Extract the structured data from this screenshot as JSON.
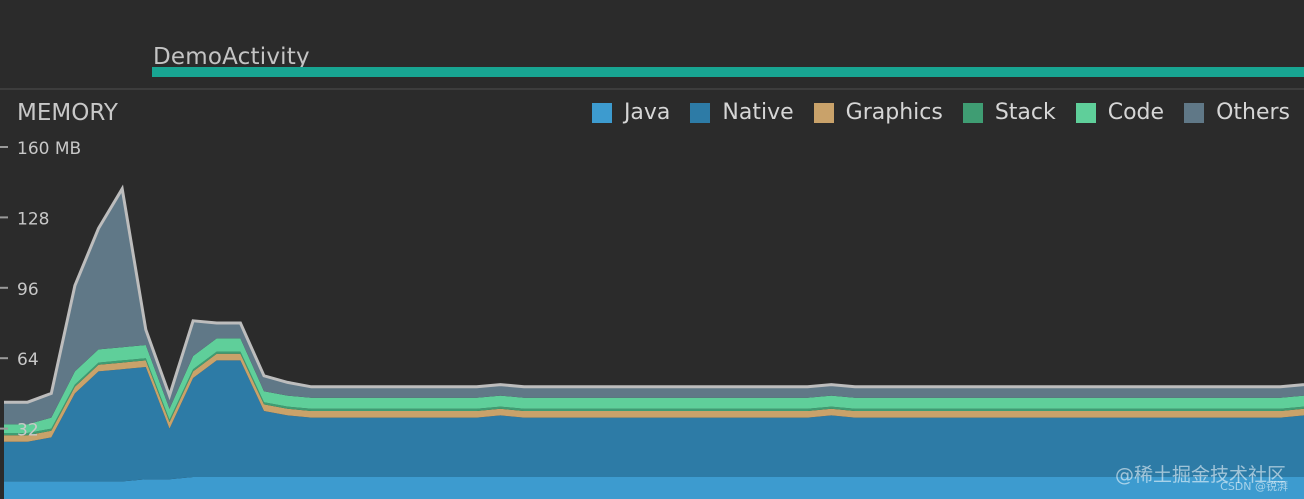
{
  "activity": {
    "label": "DemoActivity"
  },
  "chart_data": {
    "type": "area",
    "stacked": true,
    "title": "MEMORY",
    "ylabel": "",
    "xlabel": "",
    "unit": "MB",
    "ylim": [
      0,
      160
    ],
    "yticks": [
      "160 MB",
      "128",
      "96",
      "64",
      "32"
    ],
    "ytick_values": [
      160,
      128,
      96,
      64,
      32
    ],
    "legend_position": "top-right",
    "grid": false,
    "series": [
      {
        "name": "Java",
        "color": "#3d9bcf",
        "values": [
          8,
          8,
          8,
          8,
          8,
          8,
          9,
          9,
          10,
          10,
          10,
          10,
          10,
          10,
          10,
          10,
          10,
          10,
          10,
          10,
          10,
          10,
          10,
          10,
          10,
          10,
          10,
          10,
          10,
          10,
          10,
          10,
          10,
          10,
          10,
          10,
          10,
          10,
          10,
          10,
          10,
          10,
          10,
          10,
          10,
          10,
          10,
          10,
          10,
          10,
          10,
          10,
          10,
          10,
          10,
          10
        ]
      },
      {
        "name": "Native",
        "color": "#2d7ba6",
        "values": [
          18,
          18,
          20,
          40,
          50,
          51,
          51,
          23,
          45,
          53,
          53,
          30,
          28,
          27,
          27,
          27,
          27,
          27,
          27,
          27,
          27,
          28,
          27,
          27,
          27,
          27,
          27,
          27,
          27,
          27,
          27,
          27,
          27,
          27,
          27,
          28,
          27,
          27,
          27,
          27,
          27,
          27,
          27,
          27,
          27,
          27,
          27,
          27,
          27,
          27,
          27,
          27,
          27,
          27,
          27,
          28
        ]
      },
      {
        "name": "Graphics",
        "color": "#c9a26a",
        "values": [
          3,
          3,
          3,
          3,
          3,
          3,
          3,
          3,
          3,
          3,
          3,
          3,
          3,
          3,
          3,
          3,
          3,
          3,
          3,
          3,
          3,
          3,
          3,
          3,
          3,
          3,
          3,
          3,
          3,
          3,
          3,
          3,
          3,
          3,
          3,
          3,
          3,
          3,
          3,
          3,
          3,
          3,
          3,
          3,
          3,
          3,
          3,
          3,
          3,
          3,
          3,
          3,
          3,
          3,
          3,
          3
        ]
      },
      {
        "name": "Stack",
        "color": "#3f9d73",
        "values": [
          1,
          1,
          1,
          1,
          1,
          1,
          1,
          1,
          1,
          1,
          1,
          1,
          1,
          1,
          1,
          1,
          1,
          1,
          1,
          1,
          1,
          1,
          1,
          1,
          1,
          1,
          1,
          1,
          1,
          1,
          1,
          1,
          1,
          1,
          1,
          1,
          1,
          1,
          1,
          1,
          1,
          1,
          1,
          1,
          1,
          1,
          1,
          1,
          1,
          1,
          1,
          1,
          1,
          1,
          1,
          1
        ]
      },
      {
        "name": "Code",
        "color": "#5fcf9a",
        "values": [
          4,
          4,
          5,
          6,
          6,
          6,
          6,
          5,
          6,
          6,
          6,
          5,
          5,
          5,
          5,
          5,
          5,
          5,
          5,
          5,
          5,
          5,
          5,
          5,
          5,
          5,
          5,
          5,
          5,
          5,
          5,
          5,
          5,
          5,
          5,
          5,
          5,
          5,
          5,
          5,
          5,
          5,
          5,
          5,
          5,
          5,
          5,
          5,
          5,
          5,
          5,
          5,
          5,
          5,
          5,
          5
        ]
      },
      {
        "name": "Others",
        "color": "#607887",
        "values": [
          10,
          10,
          11,
          39,
          55,
          72,
          7,
          6,
          16,
          7,
          7,
          7,
          6,
          5,
          5,
          5,
          5,
          5,
          5,
          5,
          5,
          5,
          5,
          5,
          5,
          5,
          5,
          5,
          5,
          5,
          5,
          5,
          5,
          5,
          5,
          5,
          5,
          5,
          5,
          5,
          5,
          5,
          5,
          5,
          5,
          5,
          5,
          5,
          5,
          5,
          5,
          5,
          5,
          5,
          5,
          5
        ]
      }
    ]
  },
  "legend": {
    "items": [
      {
        "label": "Java",
        "color": "#3d9bcf"
      },
      {
        "label": "Native",
        "color": "#2d7ba6"
      },
      {
        "label": "Graphics",
        "color": "#c9a26a"
      },
      {
        "label": "Stack",
        "color": "#3f9d73"
      },
      {
        "label": "Code",
        "color": "#5fcf9a"
      },
      {
        "label": "Others",
        "color": "#607887"
      }
    ]
  },
  "watermark": {
    "text": "@稀土掘金技术社区",
    "small": "CSDN @锐湃"
  }
}
